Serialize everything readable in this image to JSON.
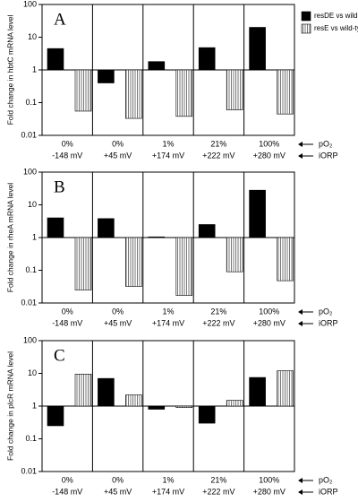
{
  "chart_data": [
    {
      "type": "bar",
      "panel": "A",
      "ylabel": "Fold change in hbtC mRNA level",
      "log": true,
      "baseline": 1,
      "ylim": [
        0.01,
        100
      ],
      "yticks": [
        0.01,
        0.1,
        1,
        10,
        100
      ],
      "categories": [
        "0%",
        "0%",
        "1%",
        "21%",
        "100%"
      ],
      "sublabels": [
        "-148 mV",
        "+45 mV",
        "+174 mV",
        "+222 mV",
        "+280 mV"
      ],
      "row_labels": [
        "pO₂",
        "iORP"
      ],
      "series": [
        {
          "name": "resDE vs wild-type",
          "color": "#000000",
          "values": [
            4.5,
            0.4,
            1.8,
            4.8,
            20
          ]
        },
        {
          "name": "resE vs wild-type",
          "color": "#bbbbbb",
          "values": [
            0.055,
            0.033,
            0.038,
            0.06,
            0.045
          ]
        }
      ]
    },
    {
      "type": "bar",
      "panel": "B",
      "ylabel": "Fold change in rheA mRNA level",
      "log": true,
      "baseline": 1,
      "ylim": [
        0.01,
        100
      ],
      "yticks": [
        0.01,
        0.1,
        1,
        10,
        100
      ],
      "categories": [
        "0%",
        "0%",
        "1%",
        "21%",
        "100%"
      ],
      "sublabels": [
        "-148 mV",
        "+45 mV",
        "+174 mV",
        "+222 mV",
        "+280 mV"
      ],
      "row_labels": [
        "pO₂",
        "iORP"
      ],
      "series": [
        {
          "color": "#000000",
          "values": [
            4,
            3.8,
            1.05,
            2.5,
            28
          ]
        },
        {
          "color": "#bbbbbb",
          "values": [
            0.025,
            0.032,
            0.017,
            0.09,
            0.048
          ]
        }
      ]
    },
    {
      "type": "bar",
      "panel": "C",
      "ylabel": "Fold change in plcR mRNA level",
      "log": true,
      "baseline": 1,
      "ylim": [
        0.01,
        100
      ],
      "yticks": [
        0.01,
        0.1,
        1,
        10,
        100
      ],
      "categories": [
        "0%",
        "0%",
        "1%",
        "21%",
        "100%"
      ],
      "sublabels": [
        "-148 mV",
        "+45 mV",
        "+174 mV",
        "+222 mV",
        "+280 mV"
      ],
      "row_labels": [
        "pO₂",
        "iORP"
      ],
      "series": [
        {
          "color": "#000000",
          "values": [
            0.25,
            7,
            0.8,
            0.3,
            7.5
          ]
        },
        {
          "color": "#bbbbbb",
          "values": [
            9.5,
            2.2,
            0.9,
            1.5,
            12
          ]
        }
      ]
    }
  ]
}
